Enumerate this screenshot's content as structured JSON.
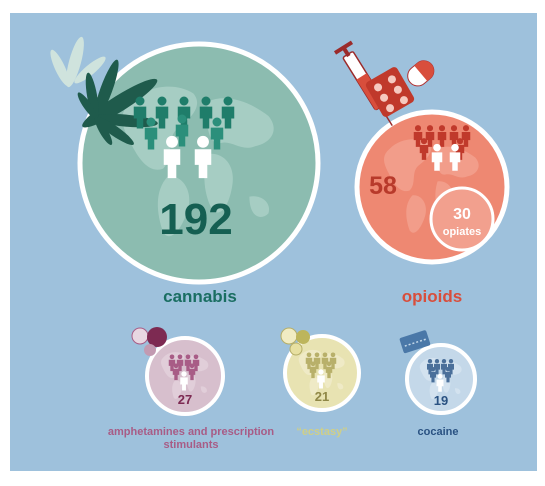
{
  "drugs": [
    {
      "key": "cannabis",
      "label": "cannabis",
      "value": "192",
      "color": "#1a6e62"
    },
    {
      "key": "opioids",
      "label": "opioids",
      "value": "58",
      "color": "#d84e3c",
      "sub": {
        "value": "30",
        "label": "opiates"
      }
    },
    {
      "key": "amphetamines",
      "label": "amphetamines and prescription stimulants",
      "value": "27",
      "color": "#a85c86"
    },
    {
      "key": "ecstasy",
      "label": "“ecstasy”",
      "value": "21",
      "color": "#cfcf88"
    },
    {
      "key": "cocaine",
      "label": "cocaine",
      "value": "19",
      "color": "#2a5282"
    }
  ],
  "colors": {
    "background": "#9ec1dc",
    "cannabis_circle": "#8cbcb0",
    "opioids_circle": "#ee8872",
    "amphetamines_circle": "#d7bfcd",
    "ecstasy_circle": "#e8e3b2",
    "cocaine_circle": "#c4d8e9"
  },
  "icons": [
    "cannabis-leaf-icon",
    "syringe-icon",
    "pill-blister-icon",
    "capsule-icon",
    "tablets-icon",
    "powder-packet-icon",
    "people-icon"
  ]
}
